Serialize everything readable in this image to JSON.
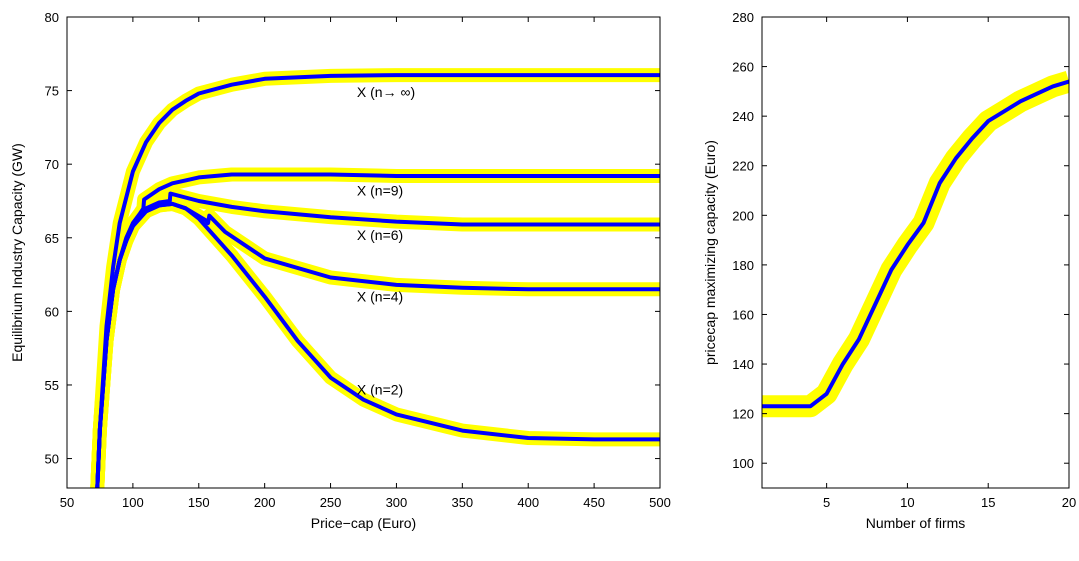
{
  "chart_data": [
    {
      "type": "line",
      "xlabel": "Price−cap (Euro)",
      "ylabel": "Equilibrium Industry Capacity (GW)",
      "xlim": [
        50,
        500
      ],
      "ylim": [
        48,
        80
      ],
      "xticks": [
        "50",
        "100",
        "150",
        "200",
        "250",
        "300",
        "350",
        "400",
        "450",
        "500"
      ],
      "yticks": [
        "50",
        "55",
        "60",
        "65",
        "70",
        "75",
        "80"
      ],
      "grid": false,
      "band_color": "#ffff00",
      "line_color": "#0000ff",
      "band_half_width": 0.75,
      "series": [
        {
          "x": [
            73,
            75,
            80,
            85,
            90,
            100,
            110,
            120,
            130,
            140,
            150,
            175,
            200,
            250,
            300,
            350,
            400,
            450,
            500
          ],
          "y": [
            48,
            52,
            59,
            63,
            66,
            69.5,
            71.5,
            72.8,
            73.7,
            74.3,
            74.8,
            75.4,
            75.8,
            76.0,
            76.05,
            76.05,
            76.05,
            76.05,
            76.05
          ]
        },
        {
          "x": [
            73,
            75,
            80,
            85,
            90,
            95,
            100,
            105,
            108,
            108.5,
            115,
            120,
            130,
            140,
            150,
            175,
            200,
            250,
            300,
            350,
            400,
            450,
            500
          ],
          "y": [
            48,
            52,
            58,
            61.5,
            63.5,
            65,
            66,
            66.6,
            67,
            67.6,
            68,
            68.3,
            68.7,
            68.9,
            69.1,
            69.3,
            69.3,
            69.3,
            69.2,
            69.2,
            69.2,
            69.2,
            69.2
          ]
        },
        {
          "x": [
            73,
            75,
            80,
            85,
            90,
            95,
            100,
            105,
            110,
            120,
            128,
            128.5,
            150,
            175,
            200,
            250,
            300,
            350,
            400,
            450,
            500
          ],
          "y": [
            48,
            52,
            58,
            61.5,
            63.5,
            64.8,
            65.8,
            66.5,
            67,
            67.4,
            67.5,
            68,
            67.5,
            67.1,
            66.8,
            66.4,
            66.1,
            65.9,
            65.9,
            65.9,
            65.9
          ]
        },
        {
          "x": [
            73,
            75,
            80,
            85,
            90,
            95,
            100,
            110,
            120,
            130,
            140,
            155,
            157,
            158,
            170,
            200,
            250,
            300,
            350,
            400,
            450,
            500
          ],
          "y": [
            48,
            52,
            58,
            61.5,
            63.5,
            64.8,
            65.8,
            66.8,
            67.2,
            67.3,
            67,
            66.2,
            66,
            66.5,
            65.4,
            63.6,
            62.3,
            61.8,
            61.6,
            61.5,
            61.5,
            61.5
          ]
        },
        {
          "x": [
            73,
            75,
            80,
            85,
            90,
            95,
            100,
            110,
            120,
            130,
            140,
            150,
            175,
            200,
            225,
            250,
            275,
            300,
            350,
            400,
            450,
            500
          ],
          "y": [
            48,
            52,
            58,
            61.5,
            63.5,
            64.8,
            65.8,
            66.8,
            67.2,
            67.3,
            67,
            66.3,
            63.8,
            61,
            58,
            55.5,
            54,
            53,
            51.9,
            51.4,
            51.3,
            51.3
          ]
        }
      ],
      "annotations": [
        {
          "text": "X (n→ ∞)",
          "x": 270,
          "y": 74.9
        },
        {
          "text": "X (n=9)",
          "x": 270,
          "y": 68.2
        },
        {
          "text": "X (n=6)",
          "x": 270,
          "y": 65.2
        },
        {
          "text": "X (n=4)",
          "x": 270,
          "y": 61.0
        },
        {
          "text": "X (n=2)",
          "x": 270,
          "y": 54.7
        }
      ]
    },
    {
      "type": "line",
      "xlabel": "Number of firms",
      "ylabel": "pricecap maximizing capacity (Euro)",
      "xlim": [
        1,
        20
      ],
      "ylim": [
        90,
        280
      ],
      "xticks": [
        "5",
        "10",
        "15",
        "20"
      ],
      "yticks": [
        "100",
        "120",
        "140",
        "160",
        "180",
        "200",
        "220",
        "240",
        "260",
        "280"
      ],
      "grid": false,
      "band_color": "#ffff00",
      "line_color": "#0000ff",
      "band_half_width": 10,
      "series": [
        {
          "x": [
            1,
            2,
            3,
            4,
            5,
            6,
            7,
            8,
            9,
            10,
            11,
            12,
            13,
            14,
            15,
            16,
            17,
            18,
            19,
            20
          ],
          "y": [
            123,
            123,
            123,
            123,
            128,
            140,
            150,
            164,
            178,
            188,
            197,
            213,
            223,
            231,
            238,
            242,
            246,
            249,
            252,
            254
          ]
        }
      ]
    }
  ]
}
